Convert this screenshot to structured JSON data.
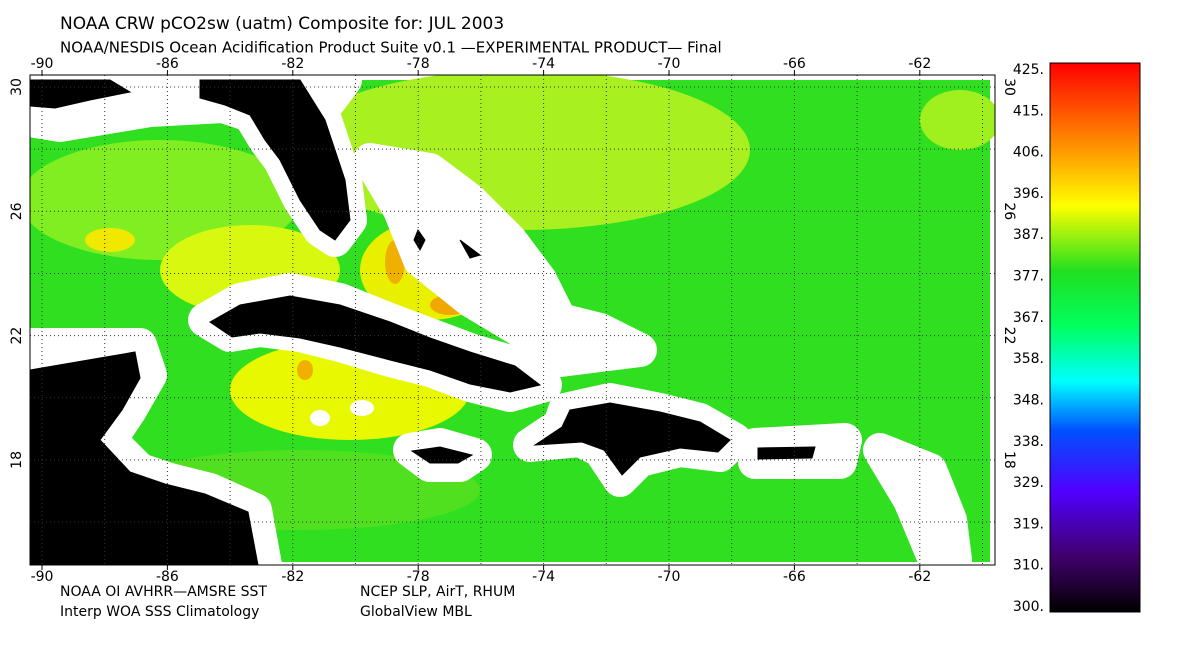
{
  "header": {
    "title": "NOAA CRW pCO2sw (uatm) Composite for: JUL 2003",
    "subtitle": "NOAA/NESDIS Ocean Acidification Product Suite  v0.1 —EXPERIMENTAL PRODUCT—   Final"
  },
  "map": {
    "lon_labels": [
      "-90",
      "-86",
      "-82",
      "-78",
      "-74",
      "-70",
      "-66",
      "-62"
    ],
    "lat_labels": [
      "30",
      "26",
      "22",
      "18"
    ]
  },
  "colorbar": {
    "labels": [
      "425.",
      "415.",
      "406.",
      "396.",
      "387.",
      "377.",
      "367.",
      "358.",
      "348.",
      "338.",
      "329.",
      "319.",
      "310.",
      "300."
    ]
  },
  "footer": {
    "line1_left": "NOAA OI AVHRR—AMSRE SST",
    "line1_right": "NCEP SLP, AirT, RHUM",
    "line2_left": "Interp WOA SSS Climatology",
    "line2_right": "GlobalView MBL"
  }
}
